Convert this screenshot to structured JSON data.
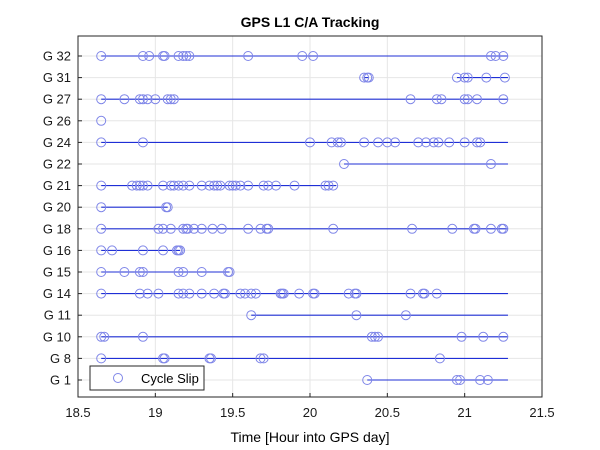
{
  "chart_data": {
    "type": "scatter",
    "title": "GPS L1 C/A Tracking",
    "xlabel": "Time [Hour into GPS day]",
    "ylabel": "",
    "xlim": [
      18.5,
      21.5
    ],
    "xticks": [
      "18.5",
      "19",
      "19.5",
      "20",
      "20.5",
      "21",
      "21.5"
    ],
    "grid": true,
    "legend": {
      "position": "bottom-left",
      "entries": [
        "Cycle Slip"
      ]
    },
    "colors": {
      "line": "#1f2fd6",
      "marker": "#7f86e8",
      "grid": "#e6e6e6",
      "axis": "#262626"
    },
    "categories": [
      "G 1",
      "G 8",
      "G 10",
      "G 11",
      "G 14",
      "G 15",
      "G 16",
      "G 18",
      "G 20",
      "G 21",
      "G 22",
      "G 24",
      "G 26",
      "G 27",
      "G 31",
      "G 32"
    ],
    "series": [
      {
        "label": "G 1",
        "tracking": [
          [
            20.37,
            21.28
          ]
        ],
        "cycle_slips": [
          20.37,
          20.95,
          20.97,
          21.1,
          21.15
        ]
      },
      {
        "label": "G 8",
        "tracking": [
          [
            18.65,
            21.28
          ]
        ],
        "cycle_slips": [
          18.65,
          19.05,
          19.06,
          19.35,
          19.36,
          19.68,
          19.7,
          20.84
        ]
      },
      {
        "label": "G 10",
        "tracking": [
          [
            18.65,
            21.28
          ]
        ],
        "cycle_slips": [
          18.65,
          18.67,
          18.92,
          20.4,
          20.42,
          20.44,
          20.98,
          21.12,
          21.25
        ]
      },
      {
        "label": "G 11",
        "tracking": [
          [
            19.62,
            21.28
          ]
        ],
        "cycle_slips": [
          19.62,
          20.3,
          20.62
        ]
      },
      {
        "label": "G 14",
        "tracking": [
          [
            18.65,
            21.28
          ]
        ],
        "cycle_slips": [
          18.65,
          18.9,
          18.95,
          19.02,
          19.15,
          19.18,
          19.22,
          19.3,
          19.38,
          19.44,
          19.45,
          19.55,
          19.58,
          19.62,
          19.65,
          19.81,
          19.82,
          19.83,
          19.93,
          20.02,
          20.03,
          20.25,
          20.29,
          20.3,
          20.65,
          20.73,
          20.74,
          20.82
        ]
      },
      {
        "label": "G 15",
        "tracking": [
          [
            18.65,
            19.48
          ]
        ],
        "cycle_slips": [
          18.65,
          18.8,
          18.9,
          18.92,
          19.15,
          19.18,
          19.3,
          19.47,
          19.48
        ]
      },
      {
        "label": "G 16",
        "tracking": [
          [
            18.65,
            19.16
          ]
        ],
        "cycle_slips": [
          18.65,
          18.72,
          18.92,
          19.05,
          19.14,
          19.15,
          19.16
        ]
      },
      {
        "label": "G 18",
        "tracking": [
          [
            18.65,
            21.28
          ]
        ],
        "cycle_slips": [
          18.65,
          19.02,
          19.05,
          19.1,
          19.18,
          19.2,
          19.21,
          19.25,
          19.3,
          19.37,
          19.43,
          19.6,
          19.68,
          19.72,
          19.73,
          20.15,
          20.66,
          20.92,
          21.06,
          21.07,
          21.17,
          21.24,
          21.25
        ]
      },
      {
        "label": "G 20",
        "tracking": [
          [
            18.65,
            19.08
          ]
        ],
        "cycle_slips": [
          18.65,
          19.07,
          19.08
        ]
      },
      {
        "label": "G 21",
        "tracking": [
          [
            18.65,
            20.17
          ]
        ],
        "cycle_slips": [
          18.65,
          18.85,
          18.88,
          18.9,
          18.92,
          18.95,
          19.05,
          19.1,
          19.12,
          19.15,
          19.18,
          19.22,
          19.3,
          19.35,
          19.38,
          19.4,
          19.42,
          19.48,
          19.5,
          19.52,
          19.55,
          19.6,
          19.7,
          19.73,
          19.78,
          19.9,
          20.1,
          20.12,
          20.15
        ]
      },
      {
        "label": "G 22",
        "tracking": [
          [
            20.22,
            21.28
          ]
        ],
        "cycle_slips": [
          20.22,
          21.17
        ]
      },
      {
        "label": "G 24",
        "tracking": [
          [
            18.65,
            21.28
          ]
        ],
        "cycle_slips": [
          18.65,
          18.92,
          20.0,
          20.14,
          20.18,
          20.2,
          20.35,
          20.44,
          20.5,
          20.55,
          20.7,
          20.75,
          20.8,
          20.83,
          20.9,
          21.0,
          21.08,
          21.1
        ]
      },
      {
        "label": "G 26",
        "tracking": [],
        "cycle_slips": [
          18.65
        ]
      },
      {
        "label": "G 27",
        "tracking": [
          [
            18.65,
            21.28
          ]
        ],
        "cycle_slips": [
          18.65,
          18.8,
          18.9,
          18.92,
          18.95,
          19.0,
          19.08,
          19.1,
          19.12,
          20.65,
          20.82,
          20.85,
          21.0,
          21.02,
          21.08,
          21.25
        ]
      },
      {
        "label": "G 31",
        "tracking": [
          [
            20.35,
            20.38
          ],
          [
            20.95,
            21.28
          ]
        ],
        "cycle_slips": [
          20.35,
          20.37,
          20.38,
          20.95,
          21.0,
          21.02,
          21.14,
          21.26
        ]
      },
      {
        "label": "G 32",
        "tracking": [
          [
            18.65,
            21.28
          ]
        ],
        "cycle_slips": [
          18.65,
          18.92,
          18.96,
          19.05,
          19.06,
          19.15,
          19.18,
          19.2,
          19.22,
          19.6,
          19.95,
          20.02,
          21.17,
          21.2,
          21.25
        ]
      }
    ]
  }
}
